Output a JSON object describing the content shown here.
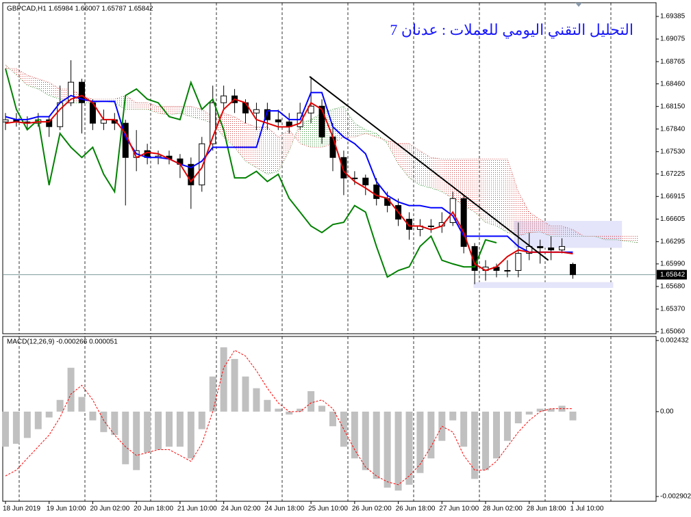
{
  "chart_data": [
    {
      "type": "candlestick",
      "title": "GBPCAD,H1  1.65984 1.66007 1.65787 1.65842",
      "annotation": "التحليل التقني اليومي للعملات : عدنان 7",
      "color": "#000000",
      "xlim": [
        -0.25,
        59.625
      ],
      "ylim": [
        1.65032,
        1.69573
      ],
      "yticks": [
        1.69385,
        1.69075,
        1.68765,
        {
          "value": 1.6846,
          "label": "1.68460"
        },
        {
          "value": 1.6815,
          "label": "1.68150"
        },
        {
          "value": 1.6784,
          "label": "1.67840"
        },
        {
          "value": 1.6753,
          "label": "1.67530"
        },
        1.67225,
        1.66915,
        1.66605,
        1.66295,
        {
          "value": 1.6599,
          "label": "1.65990"
        },
        {
          "value": 1.6568,
          "label": "1.65680"
        },
        {
          "value": 1.6537,
          "label": "1.65370"
        },
        {
          "value": 1.6506,
          "label": "1.65060"
        }
      ],
      "x": [
        0,
        1,
        2,
        3,
        4,
        5,
        6,
        7,
        8,
        9,
        10,
        11,
        12,
        13,
        14,
        15,
        16,
        17,
        18,
        19,
        20,
        21,
        22,
        23,
        24,
        25,
        26,
        27,
        28,
        29,
        30,
        31,
        32,
        33,
        34,
        35,
        36,
        37,
        38,
        39,
        40,
        41,
        42,
        43,
        44,
        45,
        46,
        47,
        48,
        49,
        50,
        51,
        52,
        53,
        54,
        55,
        56,
        57,
        58
      ],
      "open": [
        1.67938,
        1.67967,
        1.67938,
        1.6792,
        1.67967,
        1.67873,
        1.68201,
        1.68483,
        1.68201,
        1.6792,
        1.67967,
        1.6792,
        1.6745,
        1.67544,
        1.6745,
        1.67469,
        1.67431,
        1.67356,
        1.67074,
        1.67638,
        1.68201,
        1.68295,
        1.68201,
        1.6806,
        1.68107,
        1.67967,
        1.67938,
        1.67873,
        1.6806,
        1.68154,
        1.67732,
        1.6745,
        1.67168,
        1.67168,
        1.67074,
        1.66886,
        1.66792,
        1.66604,
        1.66463,
        1.6651,
        1.6651,
        1.66557,
        1.66886,
        1.66229,
        1.659,
        1.65947,
        1.659,
        1.659,
        1.66135,
        1.66229,
        1.6621,
        1.66182,
        1.65984,
        null,
        null,
        null,
        null,
        null,
        null
      ],
      "high": [
        1.6806,
        1.6806,
        1.68014,
        1.6806,
        1.68014,
        1.68436,
        1.68784,
        1.6853,
        1.68248,
        1.68107,
        1.6806,
        1.67967,
        1.67826,
        1.67638,
        1.67544,
        1.67544,
        1.67497,
        1.6745,
        1.67732,
        1.68436,
        1.68436,
        1.68389,
        1.68248,
        1.68201,
        1.68201,
        1.68107,
        1.6806,
        1.68201,
        1.68558,
        1.68248,
        1.6792,
        1.67544,
        1.67262,
        1.67215,
        1.67168,
        1.6698,
        1.66886,
        1.66698,
        1.66604,
        1.66604,
        1.66698,
        1.6698,
        1.66933,
        1.66276,
        1.66041,
        1.65994,
        1.66041,
        1.66557,
        1.66416,
        1.66322,
        1.66369,
        1.66341,
        1.66007,
        null,
        null,
        null,
        null,
        null,
        null
      ],
      "low": [
        1.67826,
        1.67873,
        1.67826,
        1.67873,
        1.67732,
        1.67826,
        1.68154,
        1.67779,
        1.67826,
        1.67826,
        1.67826,
        1.66792,
        1.67262,
        1.67356,
        1.67356,
        1.67356,
        1.67168,
        1.66745,
        1.6698,
        1.67544,
        1.68107,
        1.6806,
        1.6792,
        1.67826,
        1.67826,
        1.67826,
        1.67779,
        1.67826,
        1.6792,
        1.67638,
        1.67262,
        1.66933,
        1.67074,
        1.66933,
        1.66792,
        1.66698,
        1.6651,
        1.66322,
        1.66369,
        1.66416,
        1.66416,
        1.6651,
        1.66135,
        1.65712,
        1.65759,
        1.65806,
        1.65806,
        1.65806,
        1.66041,
        1.65994,
        1.66041,
        1.66135,
        1.65787,
        null,
        null,
        null,
        null,
        null,
        null
      ],
      "close": [
        1.67967,
        1.67938,
        1.6792,
        1.67967,
        1.67873,
        1.68201,
        1.68483,
        1.68201,
        1.6792,
        1.67967,
        1.6792,
        1.6745,
        1.67544,
        1.6745,
        1.67469,
        1.67431,
        1.67356,
        1.67074,
        1.67638,
        1.68201,
        1.68295,
        1.68201,
        1.6806,
        1.68107,
        1.67967,
        1.67938,
        1.67873,
        1.6806,
        1.68154,
        1.67732,
        1.6745,
        1.67168,
        1.67168,
        1.67074,
        1.66886,
        1.66792,
        1.66604,
        1.66463,
        1.6651,
        1.6651,
        1.66557,
        1.66886,
        1.66229,
        1.659,
        1.65947,
        1.659,
        1.659,
        1.66135,
        1.66229,
        1.6621,
        1.66182,
        1.66229,
        1.65842,
        null,
        null,
        null,
        null,
        null,
        null
      ],
      "series": [
        {
          "color": "#e00000",
          "values": [
            1.6792,
            1.6794,
            1.6792,
            1.6794,
            1.6794,
            1.6811,
            1.6825,
            1.683,
            1.682,
            1.6797,
            1.6797,
            1.6778,
            1.6745,
            1.6752,
            1.675,
            1.6743,
            1.6736,
            1.6712,
            1.6731,
            1.6773,
            1.6811,
            1.6825,
            1.682,
            1.6797,
            1.6792,
            1.6787,
            1.6787,
            1.6792,
            1.682,
            1.6811,
            1.6773,
            1.6726,
            1.6712,
            1.6703,
            1.6693,
            1.6689,
            1.667,
            1.6651,
            1.6651,
            1.6646,
            1.6651,
            1.667,
            1.6642,
            1.6599,
            1.659,
            1.6595,
            1.6609,
            1.6618,
            1.6615,
            1.6615,
            1.6615,
            1.6615,
            1.6613,
            null,
            null,
            null,
            null,
            null,
            null
          ]
        },
        {
          "color": "#0000ff",
          "values": [
            1.6801,
            1.6797,
            1.6797,
            1.6801,
            1.6801,
            1.682,
            1.683,
            1.6825,
            1.6822,
            1.6822,
            1.6822,
            1.6773,
            1.675,
            1.6745,
            1.6745,
            1.6743,
            1.6736,
            1.6731,
            1.674,
            1.6759,
            1.6759,
            1.6759,
            1.6759,
            1.6759,
            1.6809,
            1.6809,
            1.6797,
            1.6797,
            1.6834,
            1.6834,
            1.6787,
            1.6773,
            1.6764,
            1.675,
            1.6712,
            1.6693,
            1.6684,
            1.6679,
            1.6679,
            1.6676,
            1.6676,
            1.6665,
            1.6637,
            1.6637,
            1.6637,
            1.6637,
            1.6637,
            1.6623,
            1.6615,
            1.6615,
            1.6615,
            1.6615,
            1.6615,
            null,
            null,
            null,
            null,
            null,
            null
          ]
        },
        {
          "color": "#008000",
          "values": [
            1.6867,
            1.6811,
            1.6783,
            1.6797,
            1.6707,
            1.6778,
            1.6759,
            1.6745,
            1.6759,
            1.6722,
            1.6698,
            1.683,
            1.6839,
            1.6825,
            1.682,
            1.6801,
            1.6797,
            1.6848,
            1.6811,
            1.6825,
            1.6783,
            1.6717,
            1.6717,
            1.6726,
            1.6712,
            1.6722,
            1.6689,
            1.667,
            1.6651,
            1.6642,
            1.6653,
            1.6656,
            1.6679,
            1.667,
            1.6623,
            1.6581,
            1.659,
            1.6595,
            1.6623,
            1.6637,
            1.6604,
            1.6599,
            1.6595,
            1.6595,
            1.6632,
            1.6628,
            null,
            null,
            null,
            null,
            null,
            null,
            null,
            null,
            null,
            null,
            null,
            null,
            null
          ]
        },
        {
          "color": "#2e8b2e",
          "values": [
            1.6872,
            1.6858,
            1.6844,
            1.6839,
            1.683,
            1.6825,
            1.682,
            1.682,
            1.682,
            1.6822,
            1.682,
            1.6811,
            1.6811,
            1.6811,
            1.6806,
            1.6803,
            1.6806,
            1.6801,
            1.6797,
            1.6792,
            1.6773,
            1.6759,
            1.674,
            1.6731,
            1.6722,
            1.6726,
            1.6754,
            1.6792,
            1.6797,
            1.6806,
            1.6811,
            1.6815,
            1.6792,
            1.6783,
            1.6778,
            1.6764,
            1.6736,
            1.6717,
            1.6707,
            1.6703,
            1.6698,
            1.6689,
            1.6679,
            1.667,
            1.6656,
            1.6651,
            1.6642,
            1.6637,
            1.6642,
            1.6643,
            1.6637,
            1.6637,
            1.6637,
            1.6637,
            1.6637,
            1.6632,
            1.6632,
            1.663,
            1.6628
          ]
        },
        {
          "color": "#d04040",
          "values": [
            1.6867,
            1.6867,
            1.6858,
            1.6853,
            1.6848,
            1.6839,
            1.6839,
            1.683,
            1.6825,
            1.6825,
            1.6825,
            1.683,
            1.682,
            1.682,
            1.6815,
            1.6815,
            1.6815,
            1.6815,
            1.6811,
            1.6801,
            1.6806,
            1.6801,
            1.6792,
            1.6787,
            1.6787,
            1.6773,
            1.6783,
            1.6764,
            1.6759,
            1.6759,
            1.6764,
            1.6773,
            1.6773,
            1.6778,
            1.6773,
            1.6768,
            1.6764,
            1.6764,
            1.6754,
            1.6745,
            1.6743,
            1.6743,
            1.6743,
            1.6743,
            1.6743,
            1.6743,
            1.6743,
            1.6698,
            1.667,
            1.666,
            1.6651,
            1.6651,
            1.6646,
            1.6637,
            1.6637,
            1.6637,
            1.6637,
            1.6637,
            1.6637
          ]
        }
      ],
      "trendline": {
        "color": "#000000",
        "x": [
          27.875,
          49.75
        ],
        "y": [
          1.6856,
          1.6604
        ]
      },
      "zones": [
        {
          "color": "#e4e4fa",
          "x": [
            46.6,
            56.5
          ],
          "y": [
            1.6658,
            1.6621
          ]
        },
        {
          "color": "#e4e4fa",
          "x": [
            42.9,
            55.7
          ],
          "y": [
            1.6574,
            1.6566
          ]
        }
      ]
    },
    {
      "type": "macd",
      "title": "MACD(12,26,9) -0.000266 0.000051",
      "xlim": [
        -0.25,
        59.625
      ],
      "ylim": [
        -0.003066,
        0.00257
      ],
      "yticks": [
        0.002432,
        {
          "value": 0,
          "label": "0.00"
        },
        -0.002902
      ],
      "xticks": [
        {
          "value": 0,
          "label": "18 Jun 2019"
        },
        {
          "value": 4,
          "label": "19 Jun 10:00"
        },
        {
          "value": 8,
          "label": "20 Jun 02:00"
        },
        {
          "value": 12,
          "label": "20 Jun 18:00"
        },
        {
          "value": 16,
          "label": "21 Jun 10:00"
        },
        {
          "value": 20,
          "label": "24 Jun 02:00"
        },
        {
          "value": 24,
          "label": "24 Jun 18:00"
        },
        {
          "value": 28,
          "label": "25 Jun 10:00"
        },
        {
          "value": 32,
          "label": "26 Jun 02:00"
        },
        {
          "value": 36,
          "label": "26 Jun 18:00"
        },
        {
          "value": 40,
          "label": "27 Jun 10:00"
        },
        {
          "value": 44,
          "label": "28 Jun 02:00"
        },
        {
          "value": 48,
          "label": "28 Jun 18:00"
        },
        {
          "value": 52,
          "label": "1 Jul 10:00"
        }
      ],
      "x": [
        0,
        1,
        2,
        3,
        4,
        5,
        6,
        7,
        8,
        9,
        10,
        11,
        12,
        13,
        14,
        15,
        16,
        17,
        18,
        19,
        20,
        21,
        22,
        23,
        24,
        25,
        26,
        27,
        28,
        29,
        30,
        31,
        32,
        33,
        34,
        35,
        36,
        37,
        38,
        39,
        40,
        41,
        42,
        43,
        44,
        45,
        46,
        47,
        48,
        49,
        50,
        51,
        52
      ],
      "series": [
        {
          "color": "#c0c0c0",
          "values": [
            -0.0012,
            -0.0011,
            -0.0009,
            -0.0006,
            -0.0002,
            0.0004,
            0.0015,
            0.0005,
            -0.0003,
            -0.0007,
            -0.0008,
            -0.0018,
            -0.002,
            -0.0014,
            -0.0013,
            -0.0012,
            -0.0012,
            -0.0016,
            -0.0006,
            0.0012,
            0.0022,
            0.0018,
            0.0012,
            0.0008,
            0.0004,
            0.0001,
            -0.0001,
            0.0001,
            0.0007,
            0.0002,
            -0.0005,
            -0.0012,
            -0.0016,
            -0.002,
            -0.0023,
            -0.0026,
            -0.0027,
            -0.0025,
            -0.0021,
            -0.0016,
            -0.001,
            -0.0003,
            -0.0012,
            -0.0023,
            -0.002,
            -0.0016,
            -0.001,
            -0.0004,
            -0.0001,
            0.0001,
            0.0001,
            0.0002,
            -0.0003
          ]
        },
        {
          "color": "#ff0000",
          "values": [
            -0.0022,
            -0.002,
            -0.0016,
            -0.0012,
            -0.0008,
            -0.0002,
            0.0006,
            0.0009,
            0.0004,
            -0.0003,
            -0.0008,
            -0.0012,
            -0.0015,
            -0.0014,
            -0.0013,
            -0.0013,
            -0.0015,
            -0.0017,
            -0.0011,
            0,
            0.0015,
            0.0021,
            0.0019,
            0.0014,
            0.0008,
            0.0003,
            0,
            0,
            0.0003,
            0.0004,
            0.0001,
            -0.0006,
            -0.0013,
            -0.0019,
            -0.0022,
            -0.0024,
            -0.0025,
            -0.0022,
            -0.0018,
            -0.0012,
            -0.0005,
            -0.0007,
            -0.0015,
            -0.002,
            -0.002,
            -0.0017,
            -0.0012,
            -0.0007,
            -0.0003,
            0,
            0.0001,
            0.0001,
            0.0001
          ]
        }
      ]
    }
  ]
}
